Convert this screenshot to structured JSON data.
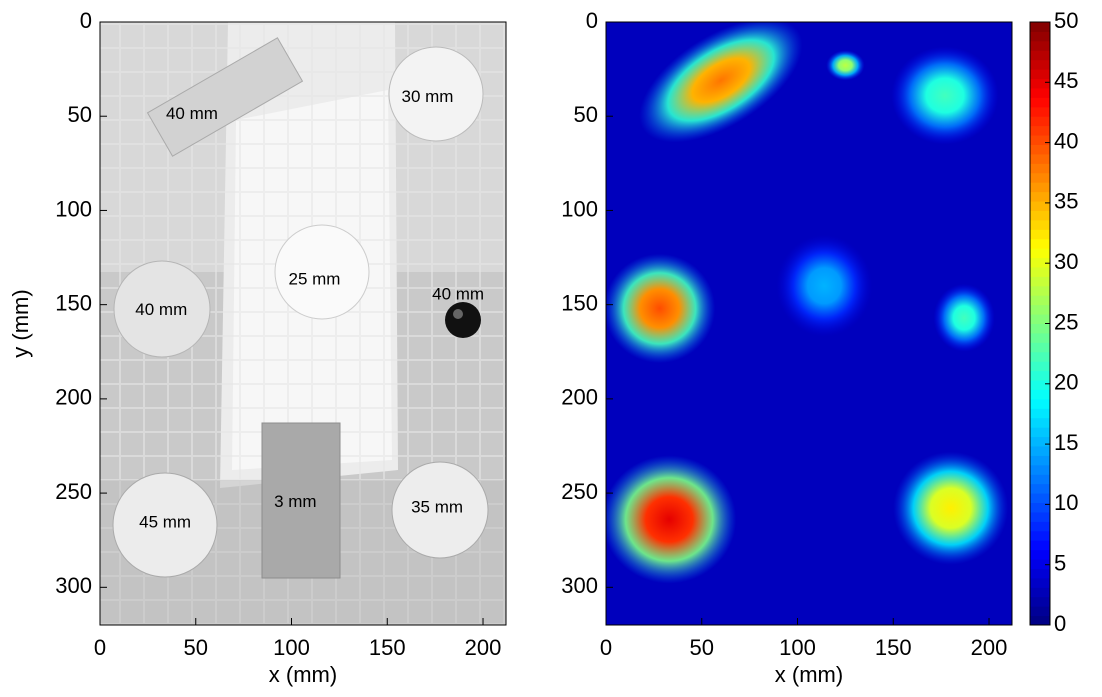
{
  "chart_data": [
    {
      "type": "image",
      "xlabel": "x (mm)",
      "ylabel": "y (mm)",
      "xlim": [
        0,
        212
      ],
      "ylim": [
        0,
        320
      ],
      "y_reversed": true,
      "xticks": [
        0,
        50,
        100,
        150,
        200
      ],
      "yticks": [
        0,
        50,
        100,
        150,
        200,
        250,
        300
      ],
      "annotations": [
        {
          "text": "40 mm",
          "x": 48,
          "y": 49
        },
        {
          "text": "30 mm",
          "x": 171,
          "y": 40
        },
        {
          "text": "25 mm",
          "x": 112,
          "y": 137
        },
        {
          "text": "40 mm",
          "x": 32,
          "y": 153
        },
        {
          "text": "40 mm",
          "x": 187,
          "y": 145
        },
        {
          "text": "3 mm",
          "x": 102,
          "y": 255
        },
        {
          "text": "45 mm",
          "x": 34,
          "y": 266
        },
        {
          "text": "35 mm",
          "x": 176,
          "y": 258
        }
      ]
    },
    {
      "type": "heatmap",
      "xlabel": "x (mm)",
      "xlim": [
        0,
        212
      ],
      "ylim": [
        0,
        320
      ],
      "y_reversed": true,
      "xticks": [
        0,
        50,
        100,
        150,
        200
      ],
      "yticks": [
        0,
        50,
        100,
        150,
        200,
        250,
        300
      ],
      "colormap": "jet",
      "clim": [
        0,
        50
      ],
      "cticks": [
        0,
        5,
        10,
        15,
        20,
        25,
        30,
        35,
        40,
        45,
        50
      ],
      "spots": [
        {
          "x": 60,
          "y": 31,
          "rx": 48,
          "ry": 24,
          "angle": -32,
          "value": 38
        },
        {
          "x": 125,
          "y": 23,
          "rx": 10,
          "ry": 8,
          "angle": 0,
          "value": 28
        },
        {
          "x": 177,
          "y": 39,
          "rx": 28,
          "ry": 26,
          "angle": 0,
          "value": 22
        },
        {
          "x": 28,
          "y": 152,
          "rx": 29,
          "ry": 29,
          "angle": 0,
          "value": 40
        },
        {
          "x": 114,
          "y": 140,
          "rx": 25,
          "ry": 27,
          "angle": 0,
          "value": 15
        },
        {
          "x": 187,
          "y": 157,
          "rx": 16,
          "ry": 18,
          "angle": 0,
          "value": 22
        },
        {
          "x": 33,
          "y": 264,
          "rx": 35,
          "ry": 34,
          "angle": 0,
          "value": 45
        },
        {
          "x": 180,
          "y": 258,
          "rx": 30,
          "ry": 30,
          "angle": 0,
          "value": 32
        }
      ]
    }
  ]
}
